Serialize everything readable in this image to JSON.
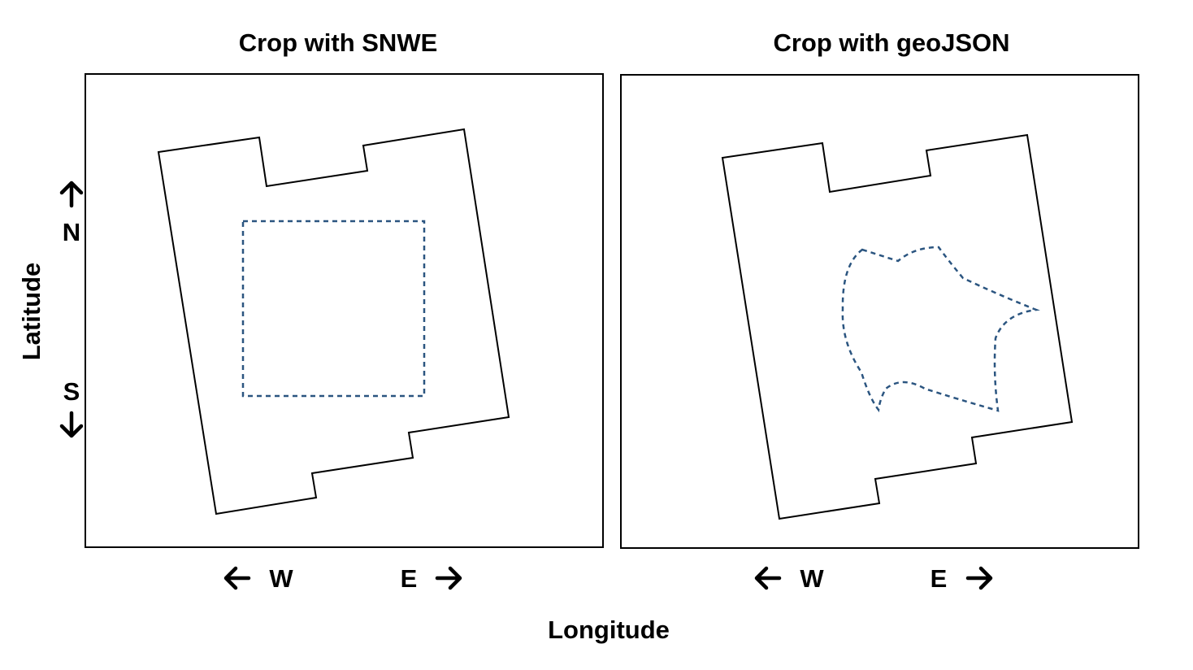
{
  "panels": [
    {
      "title": "Crop with SNWE",
      "crop_shape": "rectangle"
    },
    {
      "title": "Crop with geoJSON",
      "crop_shape": "polygon"
    }
  ],
  "axes": {
    "x_label": "Longitude",
    "y_label": "Latitude",
    "west": "W",
    "east": "E",
    "north": "N",
    "south": "S"
  },
  "colors": {
    "outline": "#000000",
    "crop_line": "#2b5580"
  },
  "icons": [
    "arrow-left-icon",
    "arrow-right-icon",
    "arrow-up-icon",
    "arrow-down-icon"
  ]
}
